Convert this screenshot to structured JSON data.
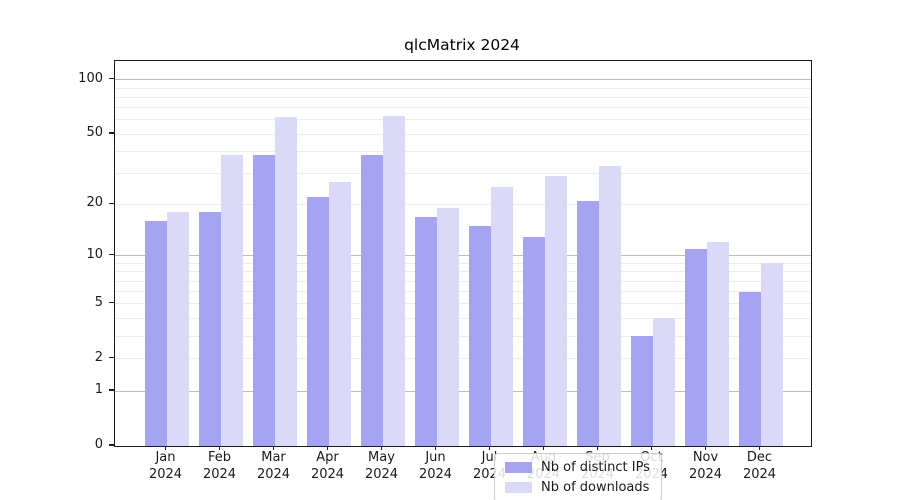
{
  "figure": {
    "title": "qlcMatrix 2024"
  },
  "chart_data": {
    "type": "bar",
    "title": "qlcMatrix 2024",
    "categories": [
      "Jan 2024",
      "Feb 2024",
      "Mar 2024",
      "Apr 2024",
      "May 2024",
      "Jun 2024",
      "Jul 2024",
      "Aug 2024",
      "Sep 2024",
      "Oct 2024",
      "Nov 2024",
      "Dec 2024"
    ],
    "series": [
      {
        "name": "Nb of distinct IPs",
        "color": "#a4a4f2",
        "values": [
          16,
          18,
          38,
          22,
          38,
          17,
          15,
          13,
          21,
          3,
          11,
          6
        ]
      },
      {
        "name": "Nb of downloads",
        "color": "#dadaf8",
        "values": [
          18,
          38,
          62,
          27,
          63,
          19,
          25,
          29,
          33,
          4,
          12,
          9
        ]
      }
    ],
    "xlabel": "",
    "ylabel": "",
    "yscale": "log1p",
    "yticks": [
      0,
      1,
      2,
      5,
      10,
      20,
      50,
      100
    ],
    "ylim": [
      0,
      127
    ],
    "grid_major": [
      1,
      10,
      100
    ],
    "grid_minor": [
      2,
      3,
      4,
      5,
      6,
      7,
      8,
      9,
      20,
      30,
      40,
      50,
      60,
      70,
      80,
      90
    ],
    "legend": {
      "position": "lower center",
      "entries": [
        "Nb of distinct IPs",
        "Nb of downloads"
      ]
    }
  }
}
